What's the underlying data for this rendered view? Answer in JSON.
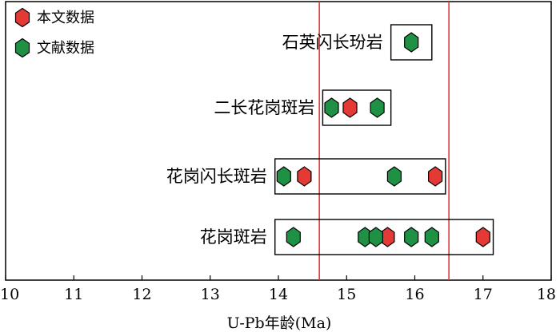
{
  "chart_data": {
    "type": "scatter",
    "xlabel": "U-Pb年龄(Ma)",
    "xlim": [
      10,
      18
    ],
    "xticks": [
      10,
      11,
      12,
      13,
      14,
      15,
      16,
      17,
      18
    ],
    "reference_lines": [
      14.6,
      16.5
    ],
    "legend": {
      "placement": "top-left",
      "entries": [
        {
          "label": "本文数据",
          "color": "#e53935"
        },
        {
          "label": "文献数据",
          "color": "#1e9145"
        }
      ]
    },
    "categories": [
      "石英闪长玢岩",
      "二长花岗斑岩",
      "花岗闪长斑岩",
      "花岗斑岩"
    ],
    "series": [
      {
        "name": "本文数据",
        "color": "#e53935",
        "points": [
          {
            "category": "二长花岗斑岩",
            "x": 15.05
          },
          {
            "category": "花岗闪长斑岩",
            "x": 14.38
          },
          {
            "category": "花岗闪长斑岩",
            "x": 16.3
          },
          {
            "category": "花岗斑岩",
            "x": 15.6
          },
          {
            "category": "花岗斑岩",
            "x": 17.0
          }
        ]
      },
      {
        "name": "文献数据",
        "color": "#1e9145",
        "points": [
          {
            "category": "石英闪长玢岩",
            "x": 15.95
          },
          {
            "category": "二长花岗斑岩",
            "x": 14.78
          },
          {
            "category": "二长花岗斑岩",
            "x": 15.45
          },
          {
            "category": "花岗闪长斑岩",
            "x": 14.08
          },
          {
            "category": "花岗闪长斑岩",
            "x": 15.7
          },
          {
            "category": "花岗斑岩",
            "x": 14.22
          },
          {
            "category": "花岗斑岩",
            "x": 15.27
          },
          {
            "category": "花岗斑岩",
            "x": 15.43
          },
          {
            "category": "花岗斑岩",
            "x": 15.95
          },
          {
            "category": "花岗斑岩",
            "x": 16.25
          }
        ]
      }
    ],
    "group_ranges": [
      {
        "category": "石英闪长玢岩",
        "range": [
          15.65,
          16.25
        ]
      },
      {
        "category": "二长花岗斑岩",
        "range": [
          14.65,
          15.65
        ]
      },
      {
        "category": "花岗闪长斑岩",
        "range": [
          13.95,
          16.45
        ]
      },
      {
        "category": "花岗斑岩",
        "range": [
          13.95,
          17.15
        ]
      }
    ],
    "grid": false
  }
}
